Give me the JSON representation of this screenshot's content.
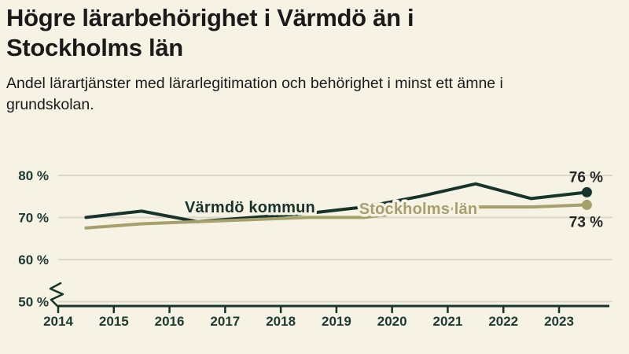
{
  "header": {
    "title": "Högre lärarbehörighet i Värmdö än i Stockholms län",
    "subtitle": "Andel lärartjänster med lärarlegitimation och behörighet i minst ett ämne i grundskolan."
  },
  "colors": {
    "background": "#f6f3e5",
    "title_text": "#1a1a1a",
    "axis_text": "#1d3a33",
    "axis_line": "#16342b",
    "gridline": "#dcd9ca",
    "end_label_text": "#262626",
    "varmdo_line": "#16342b",
    "stockholm_line": "#a6a06c"
  },
  "chart_data": {
    "type": "line",
    "x": [
      2014.5,
      2015.5,
      2016.5,
      2017.5,
      2018.5,
      2019.5,
      2020.5,
      2021.5,
      2022.5,
      2023.5
    ],
    "x_axis_ticks": [
      "2014",
      "2015",
      "2016",
      "2017",
      "2018",
      "2019",
      "2020",
      "2021",
      "2022",
      "2023"
    ],
    "y_axis_ticks": [
      {
        "value": 80,
        "label": "80 %"
      },
      {
        "value": 70,
        "label": "70 %"
      },
      {
        "value": 60,
        "label": "60 %"
      },
      {
        "value": 50,
        "label": "50 %"
      }
    ],
    "ylim": [
      48.5,
      82
    ],
    "xlim": [
      2014,
      2023.95
    ],
    "grid": "horizontal",
    "axis_break": true,
    "series": [
      {
        "name": "Värmdö kommun",
        "slug": "varmdo-kommun",
        "color_key": "varmdo_line",
        "values": [
          70,
          71.5,
          69,
          70,
          71,
          72.5,
          75,
          78,
          74.5,
          76
        ],
        "end_label": "76 %"
      },
      {
        "name": "Stockholms län",
        "slug": "stockholms-lan",
        "color_key": "stockholm_line",
        "values": [
          67.5,
          68.5,
          69,
          69.5,
          70,
          70,
          71.5,
          72.5,
          72.5,
          73
        ],
        "end_label": "73 %"
      }
    ]
  }
}
